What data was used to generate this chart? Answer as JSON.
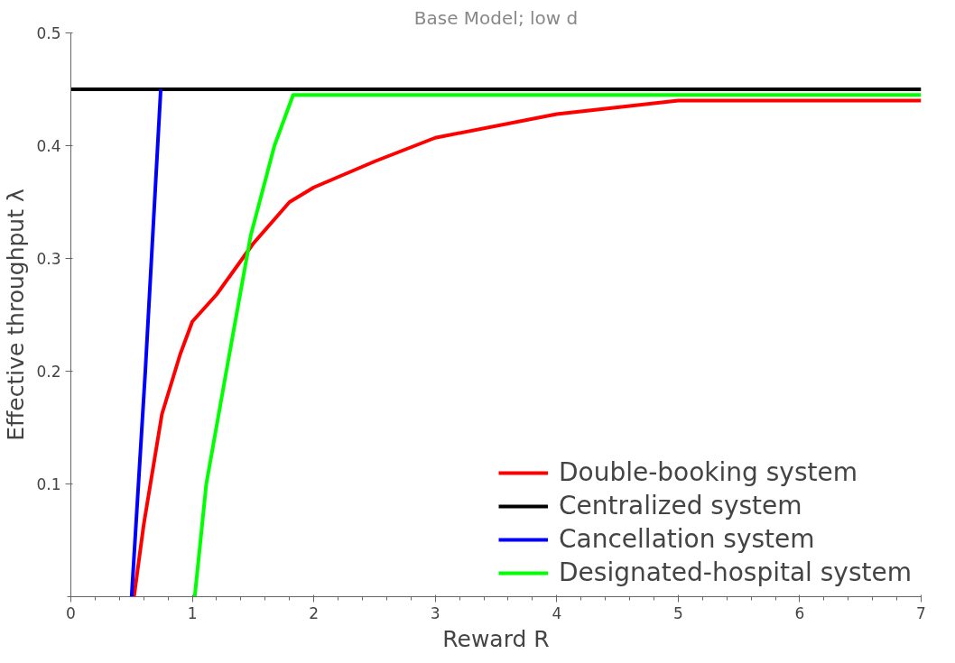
{
  "chart_data": {
    "type": "line",
    "title": "Base Model; low d",
    "xlabel": "Reward R",
    "ylabel": "Effective throughput λ",
    "xlim": [
      0,
      7
    ],
    "ylim": [
      0,
      0.5
    ],
    "xticks": [
      0,
      1,
      2,
      3,
      4,
      5,
      6,
      7
    ],
    "yticks": [
      0.1,
      0.2,
      0.3,
      0.4,
      0.5
    ],
    "grid": false,
    "legend": "bottom right",
    "marker": "none",
    "line_style": "solid",
    "series": [
      {
        "name": "Double-booking system",
        "color": "#ff0000",
        "x": [
          0.52,
          0.6,
          0.75,
          0.9,
          1.0,
          1.2,
          1.5,
          1.8,
          2.0,
          2.5,
          3.0,
          4.0,
          5.0,
          6.0,
          7.0
        ],
        "values": [
          0,
          0.064,
          0.162,
          0.215,
          0.244,
          0.268,
          0.313,
          0.35,
          0.363,
          0.386,
          0.407,
          0.428,
          0.44,
          0.44,
          0.44
        ]
      },
      {
        "name": "Centralized system",
        "color": "#000000",
        "x": [
          0,
          7
        ],
        "values": [
          0.45,
          0.45
        ]
      },
      {
        "name": "Cancellation system",
        "color": "#0000ff",
        "x": [
          0.5,
          0.613,
          0.74
        ],
        "values": [
          0,
          0.2,
          0.45
        ]
      },
      {
        "name": "Designated-hospital system",
        "color": "#00ff00",
        "x": [
          1.02,
          1.115,
          1.28,
          1.48,
          1.676,
          1.83,
          7.0
        ],
        "values": [
          0,
          0.1,
          0.2,
          0.32,
          0.4,
          0.445,
          0.445
        ]
      }
    ]
  }
}
